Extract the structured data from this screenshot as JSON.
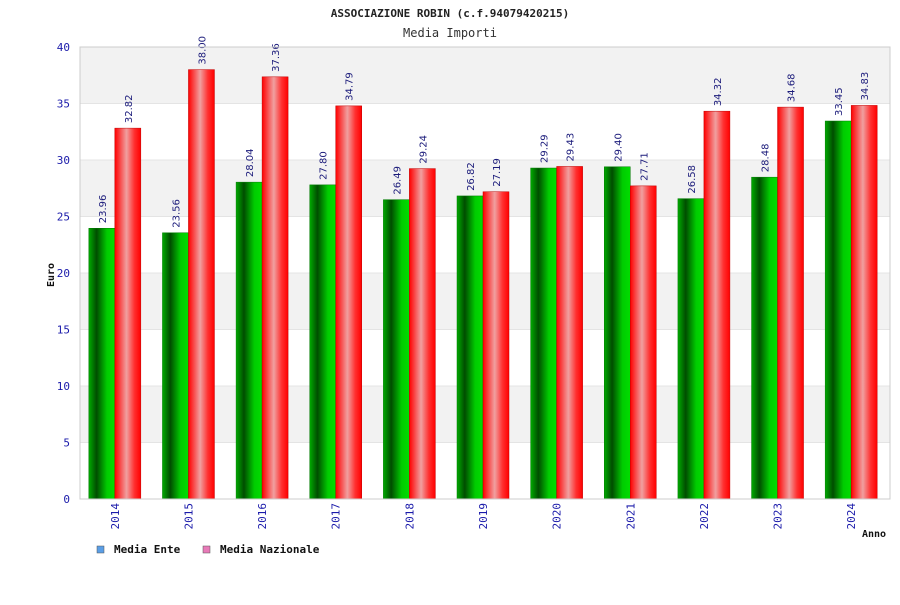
{
  "chart_data": {
    "type": "bar",
    "title": "ASSOCIAZIONE ROBIN (c.f.94079420215)",
    "subtitle": "Media Importi",
    "ylabel": "Euro",
    "xlabel": "Anno",
    "ylim": [
      0,
      40
    ],
    "yticks": [
      0,
      5,
      10,
      15,
      20,
      25,
      30,
      35,
      40
    ],
    "grid": "horizontal bands",
    "legend_position": "bottom-left",
    "categories": [
      "2014",
      "2015",
      "2016",
      "2017",
      "2018",
      "2019",
      "2020",
      "2021",
      "2022",
      "2023",
      "2024"
    ],
    "series": [
      {
        "name": "Media Ente",
        "values": [
          23.96,
          23.56,
          28.04,
          27.8,
          26.49,
          26.82,
          29.29,
          29.4,
          26.58,
          28.48,
          33.45
        ],
        "labels": [
          "23.96",
          "23.56",
          "28.04",
          "27.80",
          "26.49",
          "26.82",
          "29.29",
          "29.40",
          "26.58",
          "28.48",
          "33.45"
        ],
        "color": "#00c000",
        "legend_color": "#5a9ee6"
      },
      {
        "name": "Media Nazionale",
        "values": [
          32.82,
          38.0,
          37.36,
          34.79,
          29.24,
          27.19,
          29.43,
          27.71,
          34.32,
          34.68,
          34.83
        ],
        "labels": [
          "32.82",
          "38.00",
          "37.36",
          "34.79",
          "29.24",
          "27.19",
          "29.43",
          "27.71",
          "34.32",
          "34.68",
          "34.83"
        ],
        "color": "#ff1a1a",
        "legend_color": "#e87ab8"
      }
    ]
  }
}
